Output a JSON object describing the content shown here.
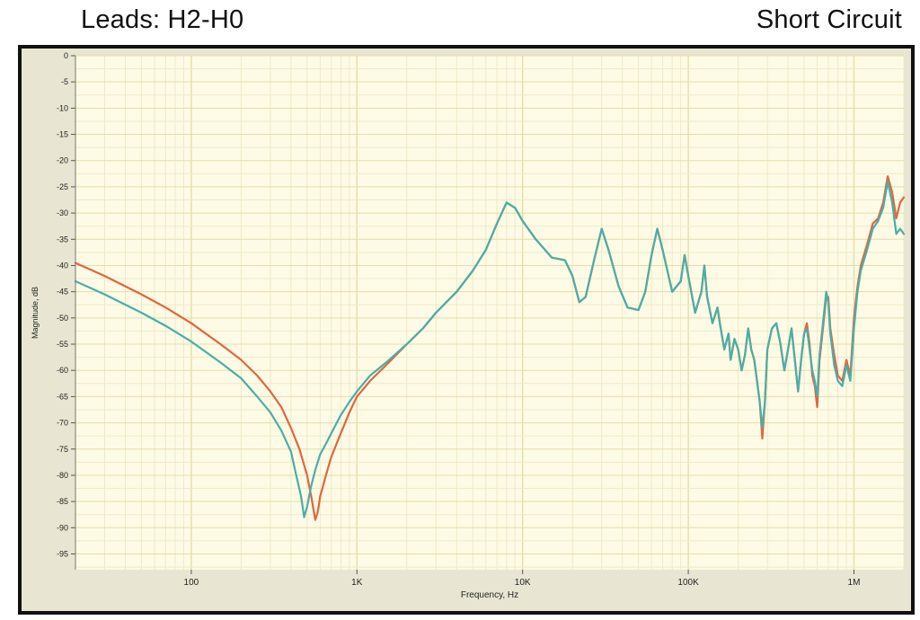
{
  "header": {
    "left_title": "Leads: H2-H0",
    "right_title": "Short Circuit"
  },
  "chart_data": {
    "type": "line",
    "xlabel": "Frequency, Hz",
    "ylabel": "Magnitude, dB",
    "x_scale": "log",
    "xlim": [
      20,
      2000000
    ],
    "ylim": [
      -98,
      0
    ],
    "x_ticks": [
      {
        "value": 100,
        "label": "100"
      },
      {
        "value": 1000,
        "label": "1K"
      },
      {
        "value": 10000,
        "label": "10K"
      },
      {
        "value": 100000,
        "label": "100K"
      },
      {
        "value": 1000000,
        "label": "1M"
      }
    ],
    "y_ticks": [
      0,
      -5,
      -10,
      -15,
      -20,
      -25,
      -30,
      -35,
      -40,
      -45,
      -50,
      -55,
      -60,
      -65,
      -70,
      -75,
      -80,
      -85,
      -90,
      -95
    ],
    "grid": true,
    "colors": {
      "plot_bg": "#fdfbe6",
      "grid_major": "#e6dca8",
      "grid_minor": "#efe9c6",
      "outer_bg": "#e8e6d2"
    },
    "series": [
      {
        "color": "#e0663e",
        "points": [
          [
            20,
            -39.5
          ],
          [
            30,
            -42
          ],
          [
            50,
            -45.5
          ],
          [
            70,
            -48
          ],
          [
            100,
            -51
          ],
          [
            150,
            -55
          ],
          [
            200,
            -58
          ],
          [
            250,
            -61
          ],
          [
            300,
            -64
          ],
          [
            350,
            -67
          ],
          [
            400,
            -71
          ],
          [
            450,
            -75
          ],
          [
            500,
            -80
          ],
          [
            530,
            -84
          ],
          [
            560,
            -88.5
          ],
          [
            580,
            -87
          ],
          [
            600,
            -84
          ],
          [
            650,
            -80
          ],
          [
            700,
            -76.5
          ],
          [
            800,
            -72
          ],
          [
            900,
            -68
          ],
          [
            1000,
            -65
          ],
          [
            1200,
            -62
          ],
          [
            1500,
            -59
          ],
          [
            2000,
            -55
          ],
          [
            2500,
            -52
          ],
          [
            3000,
            -49
          ],
          [
            4000,
            -45
          ],
          [
            5000,
            -41
          ],
          [
            6000,
            -37
          ],
          [
            7000,
            -32
          ],
          [
            8000,
            -28
          ],
          [
            9000,
            -29
          ],
          [
            10000,
            -31.5
          ],
          [
            12000,
            -35
          ],
          [
            15000,
            -38.5
          ],
          [
            18000,
            -39
          ],
          [
            20000,
            -42
          ],
          [
            22000,
            -47
          ],
          [
            24000,
            -46
          ],
          [
            27000,
            -39
          ],
          [
            30000,
            -33
          ],
          [
            33000,
            -37
          ],
          [
            38000,
            -44
          ],
          [
            43000,
            -48
          ],
          [
            50000,
            -48.5
          ],
          [
            55000,
            -45
          ],
          [
            60000,
            -38
          ],
          [
            65000,
            -33
          ],
          [
            70000,
            -37
          ],
          [
            80000,
            -45
          ],
          [
            90000,
            -43
          ],
          [
            95000,
            -38
          ],
          [
            100000,
            -42
          ],
          [
            110000,
            -49
          ],
          [
            120000,
            -45
          ],
          [
            125000,
            -40
          ],
          [
            130000,
            -46
          ],
          [
            140000,
            -51
          ],
          [
            150000,
            -48
          ],
          [
            155000,
            -51
          ],
          [
            165000,
            -56
          ],
          [
            175000,
            -53
          ],
          [
            180000,
            -58
          ],
          [
            190000,
            -54
          ],
          [
            200000,
            -56
          ],
          [
            210000,
            -60
          ],
          [
            220000,
            -57
          ],
          [
            230000,
            -52
          ],
          [
            240000,
            -56
          ],
          [
            250000,
            -58
          ],
          [
            260000,
            -62
          ],
          [
            270000,
            -66
          ],
          [
            280000,
            -73
          ],
          [
            290000,
            -66
          ],
          [
            300000,
            -56
          ],
          [
            320000,
            -52
          ],
          [
            340000,
            -51
          ],
          [
            360000,
            -55
          ],
          [
            380000,
            -60
          ],
          [
            400000,
            -56
          ],
          [
            420000,
            -52
          ],
          [
            440000,
            -58
          ],
          [
            460000,
            -64
          ],
          [
            480000,
            -58
          ],
          [
            500000,
            -53
          ],
          [
            520000,
            -51
          ],
          [
            540000,
            -55
          ],
          [
            560000,
            -61
          ],
          [
            580000,
            -63
          ],
          [
            600000,
            -67
          ],
          [
            620000,
            -58
          ],
          [
            650000,
            -52
          ],
          [
            680000,
            -46
          ],
          [
            700000,
            -46
          ],
          [
            720000,
            -52
          ],
          [
            760000,
            -57
          ],
          [
            800000,
            -61
          ],
          [
            850000,
            -62
          ],
          [
            900000,
            -58
          ],
          [
            950000,
            -61
          ],
          [
            1000000,
            -50
          ],
          [
            1050000,
            -44
          ],
          [
            1100000,
            -40
          ],
          [
            1200000,
            -36
          ],
          [
            1300000,
            -32
          ],
          [
            1400000,
            -31
          ],
          [
            1500000,
            -28
          ],
          [
            1600000,
            -23
          ],
          [
            1700000,
            -26
          ],
          [
            1800000,
            -31
          ],
          [
            1900000,
            -28
          ],
          [
            2000000,
            -27
          ]
        ]
      },
      {
        "color": "#4aaea8",
        "points": [
          [
            20,
            -43
          ],
          [
            30,
            -45.5
          ],
          [
            50,
            -49
          ],
          [
            70,
            -51.5
          ],
          [
            100,
            -54.5
          ],
          [
            150,
            -58.5
          ],
          [
            200,
            -61.5
          ],
          [
            250,
            -65
          ],
          [
            300,
            -68
          ],
          [
            350,
            -71.5
          ],
          [
            400,
            -75.5
          ],
          [
            430,
            -80
          ],
          [
            460,
            -84
          ],
          [
            480,
            -88
          ],
          [
            500,
            -86
          ],
          [
            530,
            -82
          ],
          [
            560,
            -79
          ],
          [
            600,
            -76
          ],
          [
            650,
            -74
          ],
          [
            700,
            -72
          ],
          [
            800,
            -68.5
          ],
          [
            900,
            -66
          ],
          [
            1000,
            -64
          ],
          [
            1200,
            -61
          ],
          [
            1500,
            -58.5
          ],
          [
            2000,
            -55
          ],
          [
            2500,
            -52
          ],
          [
            3000,
            -49
          ],
          [
            4000,
            -45
          ],
          [
            5000,
            -41
          ],
          [
            6000,
            -37
          ],
          [
            7000,
            -32
          ],
          [
            8000,
            -28
          ],
          [
            9000,
            -29
          ],
          [
            10000,
            -31.5
          ],
          [
            12000,
            -35
          ],
          [
            15000,
            -38.5
          ],
          [
            18000,
            -39
          ],
          [
            20000,
            -42
          ],
          [
            22000,
            -47
          ],
          [
            24000,
            -46
          ],
          [
            27000,
            -39
          ],
          [
            30000,
            -33
          ],
          [
            33000,
            -37
          ],
          [
            38000,
            -44
          ],
          [
            43000,
            -48
          ],
          [
            50000,
            -48.5
          ],
          [
            55000,
            -45
          ],
          [
            60000,
            -38
          ],
          [
            65000,
            -33
          ],
          [
            70000,
            -37
          ],
          [
            80000,
            -45
          ],
          [
            90000,
            -43
          ],
          [
            95000,
            -38
          ],
          [
            100000,
            -42
          ],
          [
            110000,
            -49
          ],
          [
            120000,
            -45
          ],
          [
            125000,
            -40
          ],
          [
            130000,
            -46
          ],
          [
            140000,
            -51
          ],
          [
            150000,
            -48
          ],
          [
            155000,
            -51
          ],
          [
            165000,
            -56
          ],
          [
            175000,
            -53
          ],
          [
            180000,
            -58
          ],
          [
            190000,
            -54
          ],
          [
            200000,
            -56
          ],
          [
            210000,
            -60
          ],
          [
            220000,
            -57
          ],
          [
            230000,
            -52
          ],
          [
            240000,
            -56
          ],
          [
            250000,
            -58
          ],
          [
            260000,
            -62
          ],
          [
            270000,
            -66
          ],
          [
            280000,
            -71
          ],
          [
            290000,
            -66
          ],
          [
            300000,
            -56
          ],
          [
            320000,
            -52
          ],
          [
            340000,
            -51
          ],
          [
            360000,
            -55
          ],
          [
            380000,
            -60
          ],
          [
            400000,
            -56
          ],
          [
            420000,
            -52
          ],
          [
            440000,
            -58
          ],
          [
            460000,
            -64
          ],
          [
            480000,
            -58
          ],
          [
            500000,
            -53
          ],
          [
            520000,
            -52
          ],
          [
            540000,
            -56
          ],
          [
            560000,
            -60
          ],
          [
            580000,
            -62
          ],
          [
            600000,
            -65
          ],
          [
            620000,
            -57
          ],
          [
            650000,
            -51
          ],
          [
            680000,
            -45
          ],
          [
            700000,
            -47
          ],
          [
            720000,
            -53
          ],
          [
            760000,
            -59
          ],
          [
            800000,
            -62
          ],
          [
            850000,
            -63
          ],
          [
            900000,
            -59
          ],
          [
            950000,
            -62
          ],
          [
            1000000,
            -52
          ],
          [
            1050000,
            -45
          ],
          [
            1100000,
            -41
          ],
          [
            1200000,
            -37
          ],
          [
            1300000,
            -33
          ],
          [
            1400000,
            -31.5
          ],
          [
            1500000,
            -29
          ],
          [
            1600000,
            -24
          ],
          [
            1700000,
            -28
          ],
          [
            1800000,
            -34
          ],
          [
            1900000,
            -33
          ],
          [
            2000000,
            -34
          ]
        ]
      }
    ]
  }
}
